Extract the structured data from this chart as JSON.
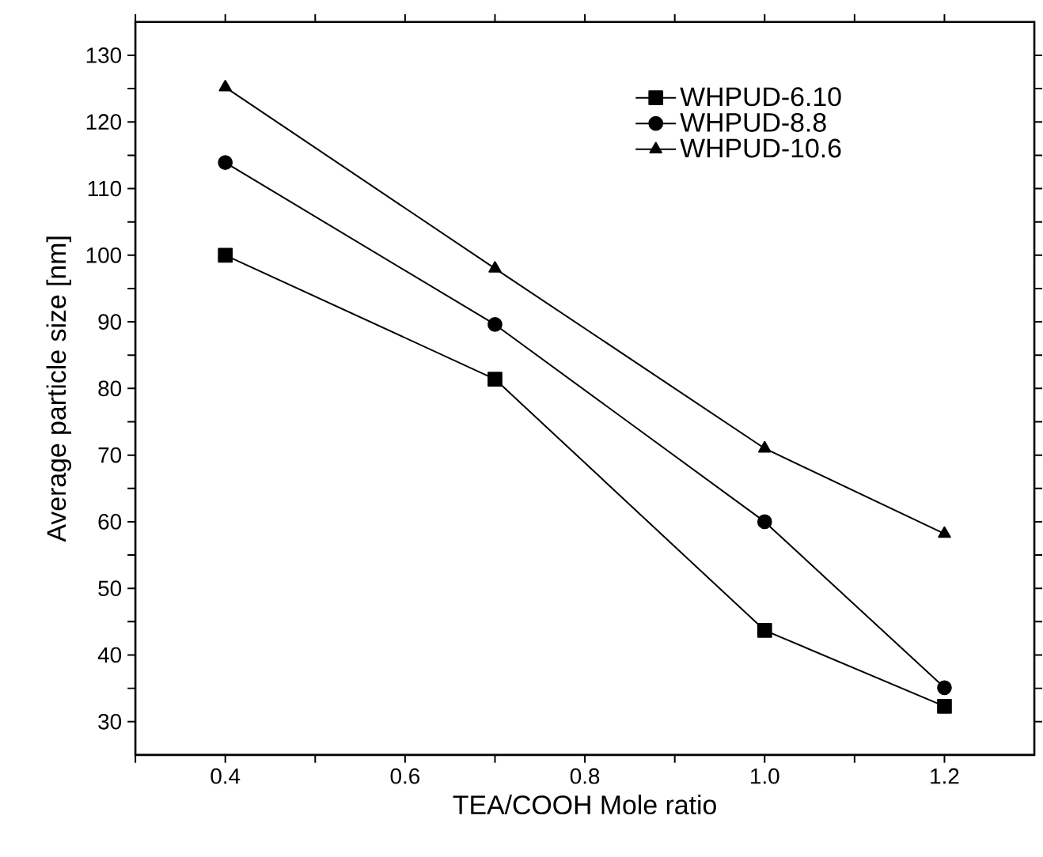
{
  "chart_data": {
    "type": "line",
    "xlabel": "TEA/COOH Mole ratio",
    "ylabel": "Average particle size [nm]",
    "x": [
      0.4,
      0.7,
      1.0,
      1.2
    ],
    "series": [
      {
        "name": "WHPUD-6.10",
        "color": "#000000",
        "marker": "square",
        "values": [
          100,
          81.4,
          43.7,
          32.3
        ]
      },
      {
        "name": "WHPUD-8.8",
        "color": "#000000",
        "marker": "circle",
        "values": [
          113.9,
          89.6,
          60,
          35.1
        ]
      },
      {
        "name": "WHPUD-10.6",
        "color": "#000000",
        "marker": "triangle",
        "values": [
          125.2,
          98,
          71,
          58.2
        ]
      }
    ],
    "xlim": [
      0.3,
      1.3
    ],
    "ylim": [
      25,
      135
    ],
    "xticks": [
      {
        "value": 0.3,
        "label": null
      },
      {
        "value": 0.4,
        "label": "0.4"
      },
      {
        "value": 0.5,
        "label": null
      },
      {
        "value": 0.6,
        "label": "0.6"
      },
      {
        "value": 0.7,
        "label": null
      },
      {
        "value": 0.8,
        "label": "0.8"
      },
      {
        "value": 0.9,
        "label": null
      },
      {
        "value": 1.0,
        "label": "1.0"
      },
      {
        "value": 1.1,
        "label": null
      },
      {
        "value": 1.2,
        "label": "1.2"
      }
    ],
    "yticks": [
      30,
      {
        "value": 35,
        "label": null
      },
      40,
      {
        "value": 45,
        "label": null
      },
      50,
      {
        "value": 55,
        "label": null
      },
      60,
      {
        "value": 65,
        "label": null
      },
      70,
      {
        "value": 75,
        "label": null
      },
      80,
      {
        "value": 85,
        "label": null
      },
      90,
      {
        "value": 95,
        "label": null
      },
      100,
      {
        "value": 105,
        "label": null
      },
      110,
      {
        "value": 115,
        "label": null
      },
      120,
      {
        "value": 125,
        "label": null
      },
      130
    ],
    "legend": "top right",
    "grid": false,
    "line_style": "solid"
  }
}
